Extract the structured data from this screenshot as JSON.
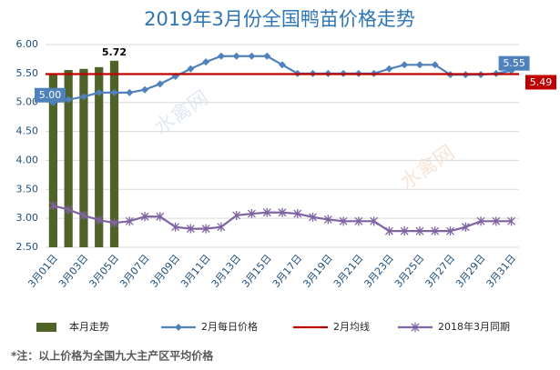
{
  "chart_data": {
    "type": "bar",
    "title": "2019年3月份全国鸭苗价格走势",
    "footnote": "*注：以上价格为全国九大主产区平均价格",
    "watermark": "水禽网",
    "categories": [
      "3月01日",
      null,
      "3月03日",
      null,
      "3月05日",
      null,
      "3月07日",
      null,
      "3月09日",
      null,
      "3月11日",
      null,
      "3月13日",
      null,
      "3月15日",
      null,
      "3月17日",
      null,
      "3月19日",
      null,
      "3月21日",
      null,
      "3月23日",
      null,
      "3月25日",
      null,
      "3月27日",
      null,
      "3月29日",
      null,
      "3月31日"
    ],
    "ylim": [
      2.5,
      6.0
    ],
    "yticks": [
      {
        "value": 2.5,
        "label": "2.50"
      },
      {
        "value": 3.0,
        "label": "3.00"
      },
      {
        "value": 3.5,
        "label": "3.50"
      },
      {
        "value": 4.0,
        "label": "4.00"
      },
      {
        "value": 4.5,
        "label": "4.50"
      },
      {
        "value": 5.0,
        "label": "5.00"
      },
      {
        "value": 5.5,
        "label": "5.50"
      },
      {
        "value": 6.0,
        "label": "6.00"
      }
    ],
    "grid": true,
    "legend": "bottom",
    "series": [
      {
        "name": "本月走势",
        "type": "bar",
        "color": "#4f6228",
        "values": [
          5.5,
          5.56,
          5.58,
          5.61,
          5.72,
          null,
          null,
          null,
          null,
          null,
          null,
          null,
          null,
          null,
          null,
          null,
          null,
          null,
          null,
          null,
          null,
          null,
          null,
          null,
          null,
          null,
          null,
          null,
          null,
          null,
          null
        ],
        "value_labels": [
          null,
          null,
          null,
          null,
          "5.72",
          null,
          null,
          null,
          null,
          null,
          null,
          null,
          null,
          null,
          null,
          null,
          null,
          null,
          null,
          null,
          null,
          null,
          null,
          null,
          null,
          null,
          null,
          null,
          null,
          null,
          null
        ]
      },
      {
        "name": "2月每日价格",
        "type": "line",
        "marker": "diamond",
        "color": "#4f81bd",
        "values": [
          5.0,
          5.05,
          5.1,
          5.17,
          5.17,
          5.17,
          5.22,
          5.32,
          5.45,
          5.58,
          5.7,
          5.8,
          5.8,
          5.8,
          5.8,
          5.65,
          5.5,
          5.5,
          5.5,
          5.5,
          5.5,
          5.5,
          5.58,
          5.65,
          5.65,
          5.65,
          5.48,
          5.48,
          5.48,
          5.5,
          5.55
        ],
        "value_labels": [
          "5.00",
          null,
          null,
          null,
          null,
          null,
          null,
          null,
          null,
          null,
          null,
          null,
          null,
          null,
          null,
          null,
          null,
          null,
          null,
          null,
          null,
          null,
          null,
          null,
          null,
          null,
          null,
          null,
          null,
          null,
          "5.55"
        ]
      },
      {
        "name": "2月均线",
        "type": "hline",
        "color": "#c00000",
        "value": 5.49
      },
      {
        "name": "2018年3月同期",
        "type": "line",
        "marker": "x",
        "color": "#8064a2",
        "values": [
          3.22,
          3.15,
          3.05,
          2.97,
          2.92,
          2.95,
          3.03,
          3.03,
          2.85,
          2.82,
          2.82,
          2.85,
          3.05,
          3.08,
          3.1,
          3.1,
          3.08,
          3.02,
          2.98,
          2.95,
          2.95,
          2.95,
          2.78,
          2.78,
          2.78,
          2.78,
          2.78,
          2.85,
          2.95,
          2.95,
          2.95
        ]
      }
    ]
  }
}
